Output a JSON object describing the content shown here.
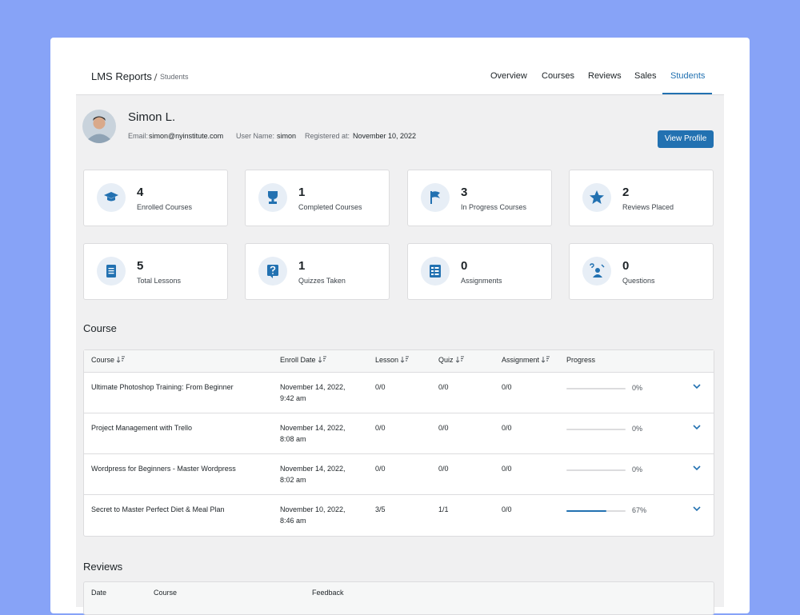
{
  "header": {
    "title": "LMS Reports",
    "breadcrumb": "Students"
  },
  "nav": [
    "Overview",
    "Courses",
    "Reviews",
    "Sales",
    "Students"
  ],
  "active_nav": 4,
  "profile": {
    "name": "Simon L.",
    "email_label": "Email:",
    "email": "simon@nyinstitute.com",
    "username_label": "User Name:",
    "username": "simon",
    "registered_label": "Registered at:",
    "registered": "November 10, 2022",
    "button": "View Profile"
  },
  "stats": [
    {
      "value": 4,
      "label": "Enrolled Courses"
    },
    {
      "value": 1,
      "label": "Completed Courses"
    },
    {
      "value": 3,
      "label": "In Progress Courses"
    },
    {
      "value": 2,
      "label": "Reviews Placed"
    },
    {
      "value": 5,
      "label": "Total Lessons"
    },
    {
      "value": 1,
      "label": "Quizzes Taken"
    },
    {
      "value": 0,
      "label": "Assignments"
    },
    {
      "value": 0,
      "label": "Questions"
    }
  ],
  "course_section": {
    "title": "Course",
    "columns": [
      "Course",
      "Enroll Date",
      "Lesson",
      "Quiz",
      "Assignment",
      "Progress"
    ],
    "rows": [
      {
        "course": "Ultimate Photoshop Training: From Beginner",
        "enroll_date": "November 14, 2022,",
        "enroll_time": "9:42 am",
        "lesson": "0/0",
        "quiz": "0/0",
        "assignment": "0/0",
        "progress": 0,
        "progress_label": "0%"
      },
      {
        "course": "Project Management with Trello",
        "enroll_date": "November 14, 2022,",
        "enroll_time": "8:08 am",
        "lesson": "0/0",
        "quiz": "0/0",
        "assignment": "0/0",
        "progress": 0,
        "progress_label": "0%"
      },
      {
        "course": "Wordpress for Beginners - Master Wordpress",
        "enroll_date": "November 14, 2022,",
        "enroll_time": "8:02 am",
        "lesson": "0/0",
        "quiz": "0/0",
        "assignment": "0/0",
        "progress": 0,
        "progress_label": "0%"
      },
      {
        "course": "Secret to Master Perfect Diet & Meal Plan",
        "enroll_date": "November 10, 2022,",
        "enroll_time": "8:46 am",
        "lesson": "3/5",
        "quiz": "1/1",
        "assignment": "0/0",
        "progress": 67,
        "progress_label": "67%"
      }
    ]
  },
  "reviews_section": {
    "title": "Reviews",
    "columns": [
      "Date",
      "Course",
      "Feedback"
    ]
  }
}
